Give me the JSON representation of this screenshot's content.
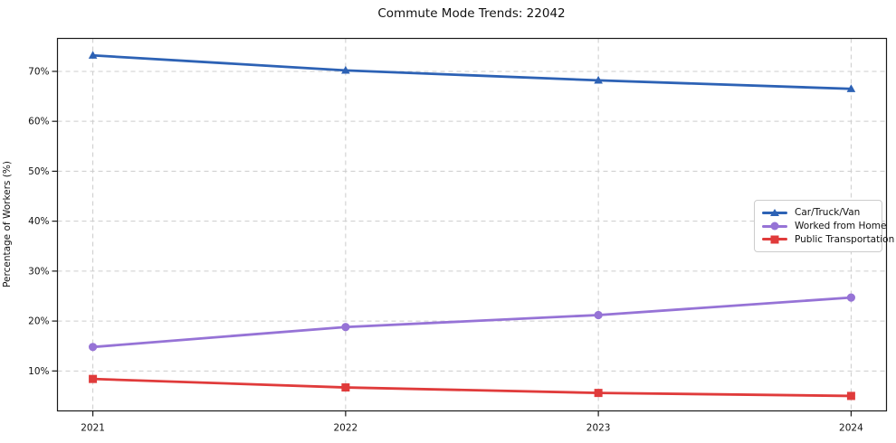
{
  "chart_data": {
    "type": "line",
    "title": "Commute Mode Trends: 22042",
    "xlabel": "",
    "ylabel": "Percentage of Workers (%)",
    "categories": [
      "2021",
      "2022",
      "2023",
      "2024"
    ],
    "x": [
      2021,
      2022,
      2023,
      2024
    ],
    "series": [
      {
        "name": "Car/Truck/Van",
        "color": "#2d62b5",
        "marker": "triangle",
        "values": [
          73.2,
          70.2,
          68.2,
          66.5
        ]
      },
      {
        "name": "Worked from Home",
        "color": "#9673d6",
        "marker": "circle",
        "values": [
          14.8,
          18.8,
          21.2,
          24.7
        ]
      },
      {
        "name": "Public Transportation",
        "color": "#e03b3b",
        "marker": "square",
        "values": [
          8.4,
          6.7,
          5.6,
          5.0
        ]
      }
    ],
    "y_ticks": [
      10,
      20,
      30,
      40,
      50,
      60,
      70
    ],
    "y_tick_suffix": "%",
    "xlim": [
      2020.86,
      2024.14
    ],
    "ylim": [
      2,
      76.6
    ],
    "grid": {
      "visible": true,
      "style": "dashed",
      "color": "#cccccc"
    },
    "legend_position": "center right",
    "spine_color": "#1a1a1a",
    "tick_label_color": "#111111",
    "line_width": 2.8
  }
}
